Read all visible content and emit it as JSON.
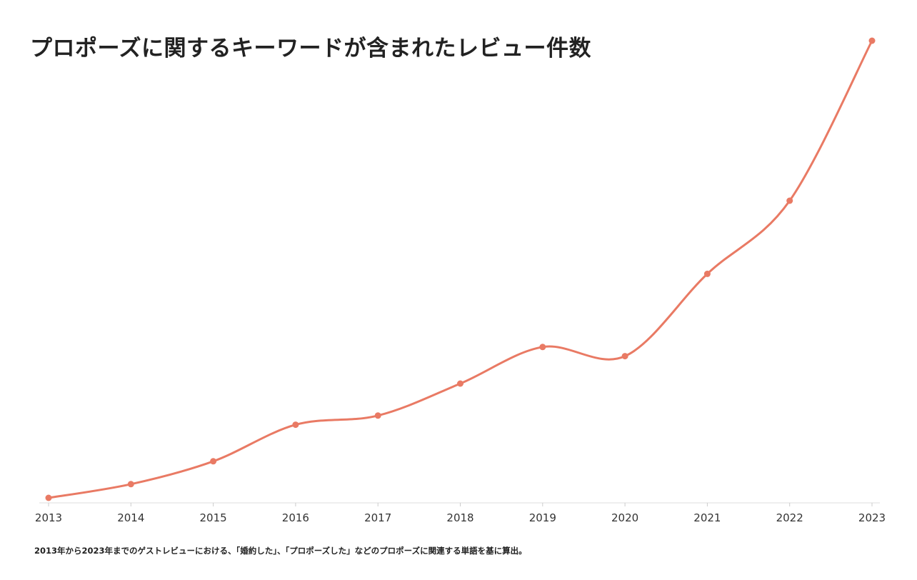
{
  "chart_data": {
    "type": "line",
    "title": "プロポーズに関するキーワードが含まれたレビュー件数",
    "xlabel": "",
    "ylabel": "",
    "x": [
      "2013",
      "2014",
      "2015",
      "2016",
      "2017",
      "2018",
      "2019",
      "2020",
      "2021",
      "2022",
      "2023"
    ],
    "series": [
      {
        "values": [
          0,
          3,
          8,
          16,
          18,
          25,
          33,
          31,
          49,
          65,
          100
        ]
      }
    ],
    "ylim": [
      0,
      100
    ],
    "y_axis_shown": false,
    "grid": false,
    "line_color": "#E97A64",
    "footnote": "2013年から2023年までのゲストレビューにおける、「婚約した」、「プロポーズした」などのプロポーズに関連する単語を基に算出。"
  }
}
